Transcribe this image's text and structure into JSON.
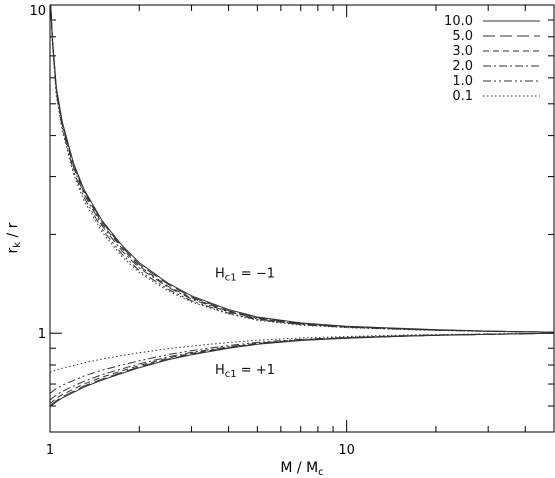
{
  "chart_data": {
    "type": "line",
    "title": "",
    "xlabel_main": "M",
    "xlabel_sep": " / ",
    "xlabel_sub_base": "M",
    "xlabel_sub": "c",
    "ylabel_base": "r",
    "ylabel_sub": "k",
    "ylabel_rest": " / r",
    "xscale": "log",
    "yscale": "log",
    "xlim": [
      1,
      50
    ],
    "ylim": [
      0.5,
      10
    ],
    "x_ticks": [
      {
        "value": 1,
        "label": "1"
      },
      {
        "value": 10,
        "label": "10"
      }
    ],
    "y_ticks": [
      {
        "value": 1,
        "label": "1"
      },
      {
        "value": 10,
        "label": "10"
      }
    ],
    "grid": false,
    "legend_position": "top-right",
    "annotations": [
      {
        "id": "hc-minus",
        "base": "H",
        "sub": "c1",
        "rest": " = −1",
        "x": 3.6,
        "y": 1.48
      },
      {
        "id": "hc-plus",
        "base": "H",
        "sub": "c1",
        "rest": " = +1",
        "x": 3.6,
        "y": 0.75
      }
    ],
    "x": [
      1.0,
      1.02,
      1.05,
      1.1,
      1.2,
      1.3,
      1.5,
      1.75,
      2.0,
      2.5,
      3.0,
      4.0,
      5.0,
      7.0,
      10.0,
      15.0,
      20.0,
      30.0,
      40.0,
      50.0
    ],
    "series": [
      {
        "name": "10.0",
        "style": "solid",
        "upper": [
          11.0,
          7.8,
          5.6,
          4.4,
          3.3,
          2.75,
          2.2,
          1.85,
          1.64,
          1.42,
          1.3,
          1.18,
          1.12,
          1.075,
          1.05,
          1.035,
          1.025,
          1.015,
          1.01,
          1.008
        ],
        "lower": [
          0.595,
          0.605,
          0.618,
          0.635,
          0.66,
          0.685,
          0.72,
          0.755,
          0.785,
          0.83,
          0.86,
          0.9,
          0.925,
          0.95,
          0.965,
          0.978,
          0.985,
          0.992,
          0.996,
          1.0
        ]
      },
      {
        "name": "5.0",
        "style": "longdash",
        "upper": [
          11.0,
          7.8,
          5.6,
          4.38,
          3.28,
          2.73,
          2.18,
          1.83,
          1.62,
          1.41,
          1.29,
          1.17,
          1.115,
          1.07,
          1.048,
          1.033,
          1.024,
          1.015,
          1.01,
          1.008
        ],
        "lower": [
          0.6,
          0.61,
          0.623,
          0.64,
          0.665,
          0.69,
          0.725,
          0.76,
          0.79,
          0.834,
          0.863,
          0.902,
          0.927,
          0.951,
          0.966,
          0.978,
          0.985,
          0.992,
          0.996,
          1.0
        ]
      },
      {
        "name": "3.0",
        "style": "dash",
        "upper": [
          11.0,
          7.8,
          5.6,
          4.35,
          3.25,
          2.7,
          2.15,
          1.81,
          1.6,
          1.39,
          1.28,
          1.165,
          1.11,
          1.068,
          1.046,
          1.032,
          1.023,
          1.014,
          1.01,
          1.008
        ],
        "lower": [
          0.61,
          0.62,
          0.633,
          0.65,
          0.675,
          0.7,
          0.735,
          0.768,
          0.797,
          0.84,
          0.868,
          0.905,
          0.929,
          0.953,
          0.967,
          0.979,
          0.986,
          0.992,
          0.996,
          1.0
        ]
      },
      {
        "name": "2.0",
        "style": "dashdot",
        "upper": [
          11.0,
          7.7,
          5.5,
          4.3,
          3.2,
          2.66,
          2.12,
          1.78,
          1.58,
          1.38,
          1.27,
          1.16,
          1.105,
          1.065,
          1.044,
          1.03,
          1.022,
          1.014,
          1.01,
          1.008
        ],
        "lower": [
          0.625,
          0.635,
          0.648,
          0.665,
          0.69,
          0.713,
          0.748,
          0.779,
          0.806,
          0.847,
          0.874,
          0.909,
          0.932,
          0.955,
          0.969,
          0.98,
          0.987,
          0.993,
          0.997,
          1.0
        ]
      },
      {
        "name": "1.0",
        "style": "dashdotdot",
        "upper": [
          11.0,
          7.6,
          5.4,
          4.22,
          3.12,
          2.6,
          2.07,
          1.74,
          1.55,
          1.36,
          1.255,
          1.15,
          1.1,
          1.062,
          1.042,
          1.029,
          1.021,
          1.013,
          1.009,
          1.008
        ],
        "lower": [
          0.655,
          0.665,
          0.678,
          0.694,
          0.718,
          0.74,
          0.772,
          0.8,
          0.824,
          0.861,
          0.885,
          0.917,
          0.938,
          0.958,
          0.971,
          0.982,
          0.988,
          0.994,
          0.997,
          1.0
        ]
      },
      {
        "name": "0.1",
        "style": "dotted",
        "upper": [
          11.0,
          7.5,
          5.3,
          4.15,
          3.05,
          2.54,
          2.03,
          1.71,
          1.53,
          1.345,
          1.245,
          1.145,
          1.095,
          1.058,
          1.04,
          1.027,
          1.02,
          1.012,
          1.009,
          1.008
        ],
        "lower": [
          0.76,
          0.765,
          0.772,
          0.782,
          0.797,
          0.812,
          0.834,
          0.855,
          0.872,
          0.897,
          0.914,
          0.937,
          0.952,
          0.967,
          0.977,
          0.986,
          0.99,
          0.995,
          0.998,
          1.0
        ]
      }
    ]
  }
}
